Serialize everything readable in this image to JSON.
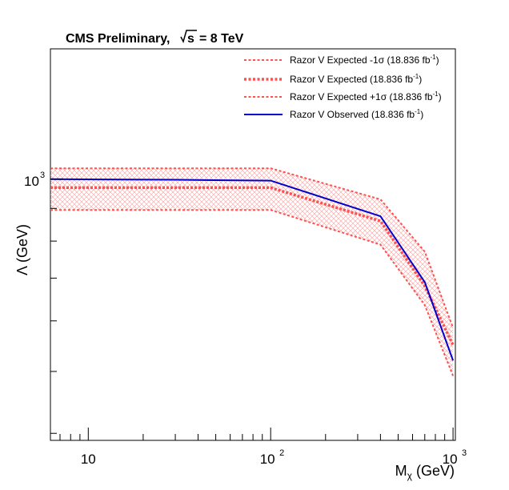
{
  "title": {
    "main": "CMS Preliminary,",
    "energy_prefix": "√s",
    "energy_value": "= 8 TeV"
  },
  "chart_data": {
    "type": "line",
    "title": "CMS Preliminary, √s = 8 TeV",
    "xlabel": "M_χ (GeV)",
    "ylabel": "Λ (GeV)",
    "xlabel_parts": {
      "main": "M",
      "sub": "χ",
      "rest": " (GeV)"
    },
    "ylabel_parts": {
      "symbol": "Λ",
      "rest": " (GeV)"
    },
    "xscale": "log",
    "yscale": "log",
    "xlim": [
      6.2,
      1030
    ],
    "ylim": [
      390,
      1600
    ],
    "grid": false,
    "legend_position": "top-right",
    "x_tick_labels": [
      {
        "value": 10,
        "base": "10",
        "exp": ""
      },
      {
        "value": 100,
        "base": "10",
        "exp": "2"
      },
      {
        "value": 1000,
        "base": "10",
        "exp": "3"
      }
    ],
    "y_tick_labels": [
      {
        "value": 1000,
        "base": "10",
        "exp": "3"
      }
    ],
    "band": {
      "name": "Expected ±1σ band",
      "color": "#ff8080",
      "x": [
        6.2,
        100,
        400,
        700,
        1000
      ],
      "upper": [
        1040,
        1040,
        930,
        770,
        585
      ],
      "lower": [
        895,
        895,
        790,
        635,
        492
      ]
    },
    "series": [
      {
        "name": "Razor V Expected -1σ (18.836 fb⁻¹)",
        "style": "dotted",
        "color": "#ff5050",
        "width": 2,
        "x": [
          6.2,
          100,
          400,
          700,
          1000
        ],
        "values": [
          1040,
          1040,
          930,
          770,
          585
        ]
      },
      {
        "name": "Razor V Expected (18.836 fb⁻¹)",
        "style": "dotted",
        "color": "#ff5050",
        "width": 3.5,
        "x": [
          6.2,
          100,
          400,
          700,
          1000
        ],
        "values": [
          970,
          970,
          860,
          680,
          550
        ]
      },
      {
        "name": "Razor V Expected +1σ (18.836 fb⁻¹)",
        "style": "dotted",
        "color": "#ff5050",
        "width": 2,
        "x": [
          6.2,
          100,
          400,
          700,
          1000
        ],
        "values": [
          895,
          895,
          790,
          635,
          492
        ]
      },
      {
        "name": "Razor V Observed (18.836 fb⁻¹)",
        "style": "solid",
        "color": "#0000cc",
        "width": 2,
        "x": [
          6.2,
          30,
          100,
          400,
          700,
          1000
        ],
        "values": [
          1000,
          998,
          995,
          875,
          690,
          520
        ]
      }
    ]
  },
  "legend": [
    {
      "prefix": "Razor V Expected -1",
      "sigma": "σ",
      "lumi": " (18.836 fb",
      "exp": "-1",
      "close": ")"
    },
    {
      "prefix": "Razor V Expected (18.836 fb",
      "sigma": "",
      "lumi": "",
      "exp": "-1",
      "close": ")"
    },
    {
      "prefix": "Razor V Expected +1",
      "sigma": "σ",
      "lumi": " (18.836 fb",
      "exp": "-1",
      "close": ")"
    },
    {
      "prefix": "Razor V Observed (18.836 fb",
      "sigma": "",
      "lumi": "",
      "exp": "-1",
      "close": ")"
    }
  ]
}
